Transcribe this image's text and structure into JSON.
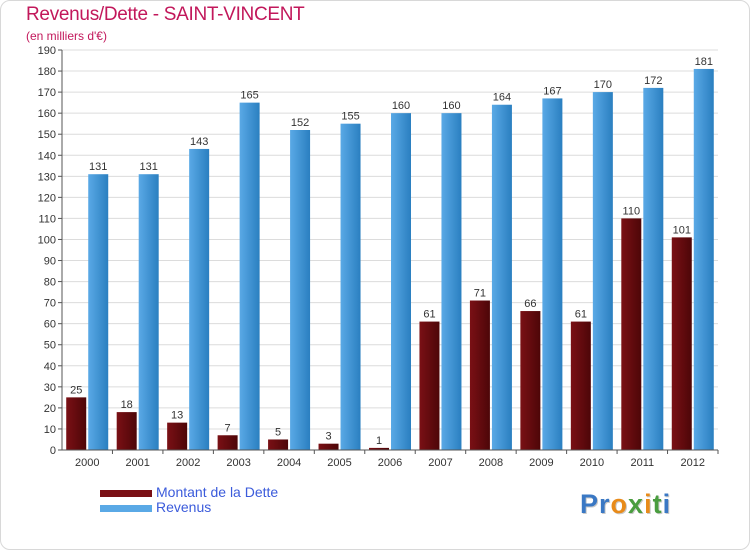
{
  "header": {
    "title": "Revenus/Dette - SAINT-VINCENT",
    "subtitle": "(en milliers d'€)"
  },
  "legend": {
    "debt_label": "Montant de la Dette",
    "revenue_label": "Revenus"
  },
  "logo": {
    "text": "Proxiti",
    "letters": [
      "P",
      "r",
      "o",
      "x",
      "i",
      "t",
      "i"
    ],
    "letter_colors": [
      "#3a78c4",
      "#3a78c4",
      "#e88b1a",
      "#4a9d3f",
      "#e88b1a",
      "#4a9d3f",
      "#3a78c4"
    ]
  },
  "colors": {
    "debt": "#7a1015",
    "debt_dark": "#4d0608",
    "revenue": "#5aa9e6",
    "revenue_dark": "#2a7fc0",
    "title": "#c2185b",
    "legend_text": "#3b5bdb"
  },
  "chart_data": {
    "type": "bar",
    "title": "Revenus/Dette - SAINT-VINCENT",
    "ylabel": "(en milliers d'€)",
    "xlabel": "",
    "categories": [
      "2000",
      "2001",
      "2002",
      "2003",
      "2004",
      "2005",
      "2006",
      "2007",
      "2008",
      "2009",
      "2010",
      "2011",
      "2012"
    ],
    "series": [
      {
        "name": "Montant de la Dette",
        "values": [
          25,
          18,
          13,
          7,
          5,
          3,
          1,
          61,
          71,
          66,
          61,
          110,
          101
        ]
      },
      {
        "name": "Revenus",
        "values": [
          131,
          131,
          143,
          165,
          152,
          155,
          160,
          160,
          164,
          167,
          170,
          172,
          181
        ]
      }
    ],
    "ylim": [
      0,
      190
    ],
    "ytick_step": 10,
    "grid": true,
    "legend_position": "bottom-left"
  }
}
